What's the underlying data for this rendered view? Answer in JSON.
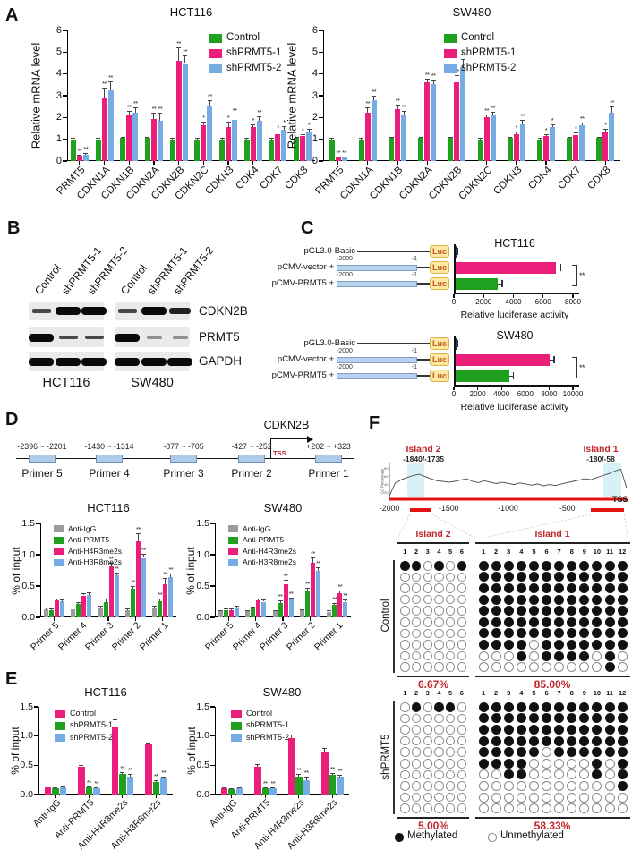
{
  "colors": {
    "green": "#1FA01F",
    "magenta": "#EC1E7C",
    "blue": "#77ABE4",
    "gray": "#9C9C9C",
    "red": "#C0272D"
  },
  "panelA": {
    "label": "A",
    "charts": [
      {
        "title": "HCT116",
        "ylabel": "Relative mRNA level",
        "ymax": 6,
        "yticks": [
          0,
          1,
          2,
          3,
          4,
          5,
          6
        ],
        "ytickLabels": [
          "0",
          "1",
          "2",
          "3",
          "4",
          "5",
          "6"
        ],
        "categories": [
          "PRMT5",
          "CDKN1A",
          "CDKN1B",
          "CDKN2A",
          "CDKN2B",
          "CDKN2C",
          "CDKN3",
          "CDK4",
          "CDK7",
          "CDK8"
        ],
        "series": [
          {
            "name": "Control",
            "color": "#1FA01F",
            "values": [
              1,
              1,
              1.05,
              1.05,
              1,
              1,
              1,
              1,
              1,
              1.05
            ],
            "err": [
              0.06,
              0.06,
              0.06,
              0.06,
              0.06,
              0.06,
              0.06,
              0.06,
              0.06,
              0.06
            ]
          },
          {
            "name": "shPRMT5-1",
            "color": "#EC1E7C",
            "values": [
              0.25,
              2.9,
              2.1,
              1.95,
              4.6,
              1.65,
              1.55,
              1.55,
              1.25,
              1.15
            ],
            "err": [
              0.05,
              0.45,
              0.2,
              0.25,
              0.6,
              0.15,
              0.25,
              0.15,
              0.12,
              0.1
            ],
            "sig": [
              "**",
              "**",
              "**",
              "**",
              "**",
              "*",
              "*",
              "*",
              "*",
              "*"
            ]
          },
          {
            "name": "shPRMT5-2",
            "color": "#77ABE4",
            "values": [
              0.3,
              3.25,
              2.2,
              1.85,
              4.5,
              2.55,
              1.9,
              1.85,
              1.45,
              1.35
            ],
            "err": [
              0.05,
              0.4,
              0.25,
              0.35,
              0.35,
              0.25,
              0.25,
              0.2,
              0.15,
              0.15
            ],
            "sig": [
              "**",
              "**",
              "**",
              "**",
              "**",
              "**",
              "**",
              "**",
              "*",
              "*"
            ]
          }
        ]
      },
      {
        "title": "SW480",
        "ylabel": "Relative mRNA level",
        "ymax": 6,
        "yticks": [
          0,
          1,
          2,
          3,
          4,
          5,
          6
        ],
        "ytickLabels": [
          "0",
          "1",
          "2",
          "3",
          "4",
          "5",
          "6"
        ],
        "categories": [
          "PRMT5",
          "CDKN1A",
          "CDKN1B",
          "CDKN2A",
          "CDKN2B",
          "CDKN2C",
          "CDKN3",
          "CDK4",
          "CDK7",
          "CDK8"
        ],
        "series": [
          {
            "name": "Control",
            "color": "#1FA01F",
            "values": [
              1,
              1,
              1.05,
              1.05,
              1.05,
              1,
              1.05,
              1,
              1.05,
              1.05
            ],
            "err": [
              0.06,
              0.06,
              0.06,
              0.06,
              0.06,
              0.06,
              0.06,
              0.06,
              0.06,
              0.06
            ]
          },
          {
            "name": "shPRMT5-1",
            "color": "#EC1E7C",
            "values": [
              0.15,
              2.2,
              2.4,
              3.6,
              3.6,
              2.0,
              1.25,
              1.15,
              1.2,
              1.35
            ],
            "err": [
              0.04,
              0.25,
              0.2,
              0.2,
              0.35,
              0.15,
              0.12,
              0.1,
              0.12,
              0.12
            ],
            "sig": [
              "**",
              "**",
              "**",
              "**",
              "**",
              "**",
              "*",
              "*",
              "*",
              "*"
            ]
          },
          {
            "name": "shPRMT5-2",
            "color": "#77ABE4",
            "values": [
              0.15,
              2.8,
              2.1,
              3.55,
              4.3,
              2.1,
              1.7,
              1.55,
              1.65,
              2.2
            ],
            "err": [
              0.04,
              0.2,
              0.2,
              0.2,
              0.4,
              0.15,
              0.2,
              0.15,
              0.12,
              0.3
            ],
            "sig": [
              "**",
              "**",
              "**",
              "**",
              "**",
              "**",
              "**",
              "*",
              "**",
              "**"
            ]
          }
        ]
      }
    ]
  },
  "panelB": {
    "label": "B",
    "lanes": [
      "Control",
      "shPRMT5-1",
      "shPRMT5-2"
    ],
    "targets": [
      "CDKN2B",
      "PRMT5",
      "GAPDH"
    ],
    "groups": [
      {
        "name": "HCT116",
        "bands": [
          [
            "weak",
            "strong",
            "strong"
          ],
          [
            "strong",
            "weak",
            "weak"
          ],
          [
            "strong",
            "strong",
            "strong"
          ]
        ]
      },
      {
        "name": "SW480",
        "bands": [
          [
            "weak",
            "strong",
            "medium"
          ],
          [
            "strong",
            "faint",
            "faint"
          ],
          [
            "strong",
            "strong",
            "strong"
          ]
        ]
      }
    ]
  },
  "panelC": {
    "label": "C",
    "luc": "Luc",
    "blocks": [
      {
        "title": "HCT116",
        "xmax": 8000,
        "xticks": [
          0,
          2000,
          4000,
          6000,
          8000
        ],
        "xlabel": "Relative luciferase activity",
        "sig": "**",
        "rows": [
          {
            "label": "pGL3.0-Basic",
            "promoter": false,
            "value": 110,
            "err": 70,
            "color": "#23366b"
          },
          {
            "label": "pCMV-vector +",
            "promoter": true,
            "start": "-2000",
            "end": "-1",
            "value": 6800,
            "err": 280,
            "color": "#EC1E7C"
          },
          {
            "label": "pCMV-PRMT5 +",
            "promoter": true,
            "start": "-2000",
            "end": "-1",
            "value": 2900,
            "err": 250,
            "color": "#1FA01F"
          }
        ]
      },
      {
        "title": "SW480",
        "xmax": 10000,
        "xticks": [
          0,
          2000,
          4000,
          6000,
          8000,
          10000
        ],
        "xlabel": "Relative luciferase activity",
        "sig": "**",
        "rows": [
          {
            "label": "pGL3.0-Basic",
            "promoter": false,
            "value": 120,
            "err": 70,
            "color": "#23366b"
          },
          {
            "label": "pCMV-vector +",
            "promoter": true,
            "start": "-2000",
            "end": "-1",
            "value": 8000,
            "err": 300,
            "color": "#EC1E7C"
          },
          {
            "label": "pCMV-PRMT5 +",
            "promoter": true,
            "start": "-2000",
            "end": "-1",
            "value": 4600,
            "err": 280,
            "color": "#1FA01F"
          }
        ]
      }
    ]
  },
  "panelD": {
    "label": "D",
    "gene": "CDKN2B",
    "tss": "TSS",
    "primers": [
      {
        "name": "Primer 5",
        "region": "-2396 ~ -2201"
      },
      {
        "name": "Primer 4",
        "region": "-1430 ~ -1314"
      },
      {
        "name": "Primer 3",
        "region": "-877 ~ -705"
      },
      {
        "name": "Primer 2",
        "region": "-427 ~ -252"
      },
      {
        "name": "Primer 1",
        "region": "+202 ~ +323"
      }
    ],
    "charts": [
      {
        "title": "HCT116",
        "ylabel": "% of input",
        "ymax": 1.5,
        "yticks": [
          0,
          0.5,
          1,
          1.5
        ],
        "ytickLabels": [
          "0.0",
          "0.5",
          "1.0",
          "1.5"
        ],
        "categories": [
          "Primer 5",
          "Primer 4",
          "Primer 3",
          "Primer 2",
          "Primer 1"
        ],
        "series": [
          {
            "name": "Anti-IgG",
            "color": "#9C9C9C",
            "values": [
              0.13,
              0.13,
              0.16,
              0.11,
              0.15
            ],
            "err": [
              0.03,
              0.03,
              0.03,
              0.03,
              0.03
            ]
          },
          {
            "name": "Anti-PRMT5",
            "color": "#1FA01F",
            "values": [
              0.12,
              0.21,
              0.25,
              0.46,
              0.26
            ],
            "err": [
              0.03,
              0.04,
              0.05,
              0.04,
              0.04
            ],
            "sig": [
              "",
              "",
              "",
              "**",
              "**"
            ]
          },
          {
            "name": "Anti-H4R3me2s",
            "color": "#EC1E7C",
            "values": [
              0.27,
              0.35,
              0.82,
              1.22,
              0.53
            ],
            "err": [
              0.03,
              0.04,
              0.05,
              0.12,
              0.1
            ],
            "sig": [
              "",
              "",
              "**",
              "**",
              "**"
            ]
          },
          {
            "name": "Anti-H3R8me2s",
            "color": "#77ABE4",
            "values": [
              0.26,
              0.36,
              0.67,
              0.95,
              0.65
            ],
            "err": [
              0.03,
              0.04,
              0.05,
              0.07,
              0.05
            ],
            "sig": [
              "",
              "",
              "**",
              "**",
              "**"
            ]
          }
        ]
      },
      {
        "title": "SW480",
        "ylabel": "% of input",
        "ymax": 1.5,
        "yticks": [
          0,
          0.5,
          1,
          1.5
        ],
        "ytickLabels": [
          "0.0",
          "0.5",
          "1.0",
          "1.5"
        ],
        "categories": [
          "Primer 5",
          "Primer 4",
          "Primer 3",
          "Primer 2",
          "Primer 1"
        ],
        "series": [
          {
            "name": "Anti-IgG",
            "color": "#9C9C9C",
            "values": [
              0.1,
              0.1,
              0.1,
              0.11,
              0.09
            ],
            "err": [
              0.02,
              0.02,
              0.02,
              0.02,
              0.02
            ]
          },
          {
            "name": "Anti-PRMT5",
            "color": "#1FA01F",
            "values": [
              0.12,
              0.14,
              0.23,
              0.43,
              0.2
            ],
            "err": [
              0.02,
              0.03,
              0.04,
              0.04,
              0.03
            ],
            "sig": [
              "",
              "",
              "**",
              "**",
              "**"
            ]
          },
          {
            "name": "Anti-H4R3me2s",
            "color": "#EC1E7C",
            "values": [
              0.12,
              0.27,
              0.53,
              0.87,
              0.38
            ],
            "err": [
              0.02,
              0.03,
              0.07,
              0.09,
              0.05
            ],
            "sig": [
              "",
              "",
              "**",
              "**",
              "**"
            ]
          },
          {
            "name": "Anti-H3R8me2s",
            "color": "#77ABE4",
            "values": [
              0.16,
              0.25,
              0.28,
              0.75,
              0.25
            ],
            "err": [
              0.02,
              0.03,
              0.04,
              0.05,
              0.03
            ],
            "sig": [
              "",
              "",
              "**",
              "**",
              "**"
            ]
          }
        ]
      }
    ]
  },
  "panelE": {
    "label": "E",
    "charts": [
      {
        "title": "HCT116",
        "ylabel": "% of input",
        "ymax": 1.5,
        "yticks": [
          0,
          0.5,
          1,
          1.5
        ],
        "ytickLabels": [
          "0.0",
          "0.5",
          "1.0",
          "1.5"
        ],
        "categories": [
          "Anti-IgG",
          "Anti-PRMT5",
          "Anti-H4R3me2s",
          "Anti-H3R8me2s"
        ],
        "series": [
          {
            "name": "Control",
            "color": "#EC1E7C",
            "values": [
              0.13,
              0.47,
              1.15,
              0.85
            ],
            "err": [
              0.02,
              0.04,
              0.14,
              0.04
            ]
          },
          {
            "name": "shPRMT5-1",
            "color": "#1FA01F",
            "values": [
              0.11,
              0.12,
              0.35,
              0.22
            ],
            "err": [
              0.02,
              0.02,
              0.04,
              0.03
            ],
            "sig": [
              "",
              "**",
              "**",
              "**"
            ]
          },
          {
            "name": "shPRMT5-2",
            "color": "#77ABE4",
            "values": [
              0.12,
              0.1,
              0.31,
              0.27
            ],
            "err": [
              0.02,
              0.02,
              0.04,
              0.04
            ],
            "sig": [
              "",
              "**",
              "**",
              "**"
            ]
          }
        ]
      },
      {
        "title": "SW480",
        "ylabel": "% of input",
        "ymax": 1.5,
        "yticks": [
          0,
          0.5,
          1,
          1.5
        ],
        "ytickLabels": [
          "0.0",
          "0.5",
          "1.0",
          "1.5"
        ],
        "categories": [
          "Anti-IgG",
          "Anti-PRMT5",
          "Anti-H4R3me2s",
          "Anti-H3R8me2s"
        ],
        "series": [
          {
            "name": "Control",
            "color": "#EC1E7C",
            "values": [
              0.1,
              0.47,
              0.96,
              0.73
            ],
            "err": [
              0.02,
              0.05,
              0.06,
              0.06
            ]
          },
          {
            "name": "shPRMT5-1",
            "color": "#1FA01F",
            "values": [
              0.09,
              0.1,
              0.3,
              0.33
            ],
            "err": [
              0.02,
              0.02,
              0.05,
              0.04
            ],
            "sig": [
              "",
              "**",
              "**",
              "**"
            ]
          },
          {
            "name": "shPRMT5-2",
            "color": "#77ABE4",
            "values": [
              0.1,
              0.11,
              0.25,
              0.3
            ],
            "err": [
              0.02,
              0.02,
              0.05,
              0.03
            ],
            "sig": [
              "",
              "**",
              "**",
              "**"
            ]
          }
        ]
      }
    ]
  },
  "panelF": {
    "label": "F",
    "gc": {
      "ylabel": "GC Percentage",
      "yticks": [
        "80",
        "60",
        "40",
        "20"
      ],
      "xticks": [
        "-2000",
        "-1500",
        "-1000",
        "-500"
      ],
      "tss": "TSS",
      "islands": [
        {
          "name": "Island 2",
          "coords": "-1840/-1735"
        },
        {
          "name": "Island 1",
          "coords": "-180/-58"
        }
      ],
      "curve": [
        0.05,
        0.45,
        0.55,
        0.62,
        0.68,
        0.72,
        0.65,
        0.58,
        0.52,
        0.5,
        0.47,
        0.5,
        0.54,
        0.58,
        0.5,
        0.46,
        0.52,
        0.47,
        0.43,
        0.47,
        0.44,
        0.4,
        0.45,
        0.42,
        0.38,
        0.42,
        0.36,
        0.4,
        0.37,
        0.42,
        0.46,
        0.5,
        0.54,
        0.58,
        0.55,
        0.62,
        0.68,
        0.74,
        0.82,
        0.88,
        0.3
      ]
    },
    "groups": [
      {
        "name": "Control",
        "island2": {
          "pct": "6.67%",
          "rows": [
            "110101",
            "000000",
            "000000",
            "000000",
            "000000",
            "000000",
            "000000",
            "000000",
            "000000",
            "000000"
          ]
        },
        "island1": {
          "pct": "85.00%",
          "rows": [
            "111111111111",
            "111111111111",
            "111111111111",
            "111111111111",
            "111111111111",
            "111111111111",
            "111111111111",
            "111101111111",
            "000101111010",
            "000000000010"
          ]
        }
      },
      {
        "name": "shPRMT5",
        "island2": {
          "pct": "5.00%",
          "rows": [
            "010110",
            "000000",
            "000000",
            "000000",
            "000000",
            "000000",
            "000000",
            "000000",
            "000000",
            "000000"
          ]
        },
        "island1": {
          "pct": "58.33%",
          "rows": [
            "111111111111",
            "111111111111",
            "111111111111",
            "111111111111",
            "111110111111",
            "111100000101",
            "001100000101",
            "000000000001",
            "000000000000",
            "000000000000"
          ]
        }
      }
    ],
    "legend": [
      {
        "symbol": "filled",
        "label": "Methylated"
      },
      {
        "symbol": "open",
        "label": "Unmethylated"
      }
    ]
  }
}
